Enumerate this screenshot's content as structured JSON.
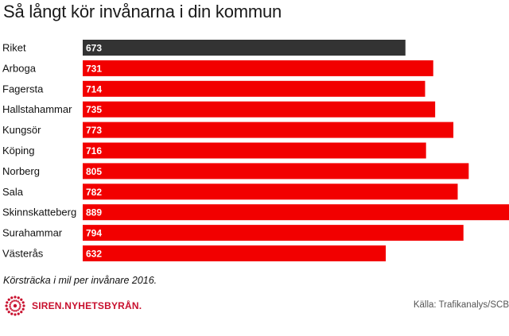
{
  "title": "Så långt kör invånarna i din kommun",
  "note": "Körsträcka i mil per invånare 2016.",
  "source": "Källa: Trafikanalys/SCB",
  "logo_text": "SIREN.NYHETSBYRÅN.",
  "logo_icon": "siren-burst-icon",
  "colors": {
    "highlight": "#333333",
    "bar": "#f20000",
    "brand": "#c8102e"
  },
  "chart_data": {
    "type": "bar",
    "orientation": "horizontal",
    "title": "Så långt kör invånarna i din kommun",
    "xlabel": "",
    "ylabel": "",
    "categories": [
      "Riket",
      "Arboga",
      "Fagersta",
      "Hallstahammar",
      "Kungsör",
      "Köping",
      "Norberg",
      "Sala",
      "Skinnskatteberg",
      "Surahammar",
      "Västerås"
    ],
    "values": [
      673,
      731,
      714,
      735,
      773,
      716,
      805,
      782,
      889,
      794,
      632
    ],
    "highlight_category": "Riket",
    "xlim": [
      0,
      889
    ],
    "grid": false,
    "legend": "none",
    "data_labels": "inside-left"
  }
}
